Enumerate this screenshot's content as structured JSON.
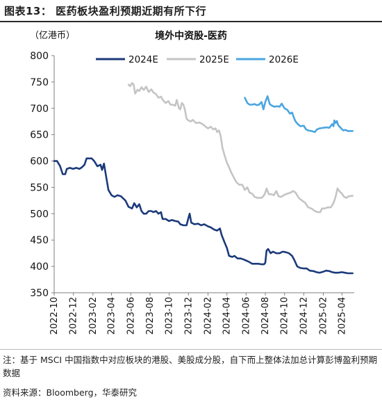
{
  "header": {
    "title": "图表13：  医药板块盈利预期近期有所下行"
  },
  "chart_data": {
    "type": "line",
    "title": "境外中资股-医药",
    "ylabel": "（亿港币）",
    "ylim": [
      350,
      800
    ],
    "yticks": [
      350,
      400,
      450,
      500,
      550,
      600,
      650,
      700,
      750,
      800
    ],
    "xlim": [
      "2022-10-01",
      "2025-05-10"
    ],
    "xticks": [
      "2022-10",
      "2022-12",
      "2023-02",
      "2023-04",
      "2023-06",
      "2023-08",
      "2023-10",
      "2023-12",
      "2024-02",
      "2024-04",
      "2024-06",
      "2024-08",
      "2024-10",
      "2024-12",
      "2025-02",
      "2025-04"
    ],
    "legend_position": "top",
    "grid": false,
    "series": [
      {
        "name": "2024E",
        "color": "#1b3a7a",
        "points": [
          [
            "2022-10-01",
            600
          ],
          [
            "2022-10-10",
            600
          ],
          [
            "2022-10-20",
            590
          ],
          [
            "2022-10-28",
            575
          ],
          [
            "2022-11-05",
            575
          ],
          [
            "2022-11-10",
            585
          ],
          [
            "2022-11-20",
            587
          ],
          [
            "2022-11-30",
            585
          ],
          [
            "2022-12-10",
            587
          ],
          [
            "2022-12-20",
            585
          ],
          [
            "2022-12-28",
            588
          ],
          [
            "2023-01-05",
            593
          ],
          [
            "2023-01-12",
            605
          ],
          [
            "2023-01-20",
            605
          ],
          [
            "2023-01-28",
            605
          ],
          [
            "2023-02-05",
            600
          ],
          [
            "2023-02-15",
            590
          ],
          [
            "2023-02-25",
            593
          ],
          [
            "2023-03-02",
            583
          ],
          [
            "2023-03-08",
            595
          ],
          [
            "2023-03-15",
            570
          ],
          [
            "2023-03-22",
            545
          ],
          [
            "2023-04-01",
            535
          ],
          [
            "2023-04-10",
            532
          ],
          [
            "2023-04-20",
            535
          ],
          [
            "2023-05-01",
            533
          ],
          [
            "2023-05-15",
            525
          ],
          [
            "2023-05-25",
            513
          ],
          [
            "2023-06-05",
            510
          ],
          [
            "2023-06-12",
            520
          ],
          [
            "2023-06-20",
            512
          ],
          [
            "2023-06-28",
            518
          ],
          [
            "2023-07-05",
            505
          ],
          [
            "2023-07-12",
            500
          ],
          [
            "2023-07-20",
            500
          ],
          [
            "2023-07-28",
            505
          ],
          [
            "2023-08-05",
            505
          ],
          [
            "2023-08-12",
            503
          ],
          [
            "2023-08-20",
            505
          ],
          [
            "2023-08-28",
            500
          ],
          [
            "2023-09-05",
            503
          ],
          [
            "2023-09-10",
            490
          ],
          [
            "2023-09-20",
            490
          ],
          [
            "2023-09-30",
            486
          ],
          [
            "2023-10-10",
            488
          ],
          [
            "2023-10-20",
            486
          ],
          [
            "2023-10-30",
            485
          ],
          [
            "2023-11-05",
            480
          ],
          [
            "2023-11-15",
            478
          ],
          [
            "2023-11-25",
            478
          ],
          [
            "2023-12-01",
            492
          ],
          [
            "2023-12-05",
            500
          ],
          [
            "2023-12-10",
            483
          ],
          [
            "2023-12-20",
            480
          ],
          [
            "2024-01-01",
            481
          ],
          [
            "2024-01-10",
            478
          ],
          [
            "2024-01-20",
            480
          ],
          [
            "2024-02-01",
            476
          ],
          [
            "2024-02-10",
            474
          ],
          [
            "2024-02-20",
            470
          ],
          [
            "2024-03-01",
            468
          ],
          [
            "2024-03-10",
            472
          ],
          [
            "2024-03-15",
            460
          ],
          [
            "2024-03-25",
            445
          ],
          [
            "2024-04-01",
            435
          ],
          [
            "2024-04-08",
            420
          ],
          [
            "2024-04-18",
            418
          ],
          [
            "2024-04-25",
            420
          ],
          [
            "2024-05-05",
            415
          ],
          [
            "2024-05-15",
            415
          ],
          [
            "2024-05-25",
            413
          ],
          [
            "2024-06-05",
            410
          ],
          [
            "2024-06-12",
            408
          ],
          [
            "2024-06-20",
            405
          ],
          [
            "2024-06-28",
            405
          ],
          [
            "2024-07-10",
            405
          ],
          [
            "2024-07-20",
            404
          ],
          [
            "2024-07-28",
            404
          ],
          [
            "2024-08-01",
            407
          ],
          [
            "2024-08-05",
            430
          ],
          [
            "2024-08-10",
            433
          ],
          [
            "2024-08-18",
            425
          ],
          [
            "2024-08-25",
            428
          ],
          [
            "2024-09-05",
            425
          ],
          [
            "2024-09-15",
            425
          ],
          [
            "2024-09-25",
            428
          ],
          [
            "2024-10-05",
            427
          ],
          [
            "2024-10-15",
            425
          ],
          [
            "2024-10-25",
            420
          ],
          [
            "2024-11-01",
            412
          ],
          [
            "2024-11-10",
            400
          ],
          [
            "2024-11-20",
            397
          ],
          [
            "2024-12-01",
            396
          ],
          [
            "2024-12-10",
            396
          ],
          [
            "2024-12-20",
            392
          ],
          [
            "2025-01-01",
            391
          ],
          [
            "2025-01-10",
            389
          ],
          [
            "2025-01-20",
            388
          ],
          [
            "2025-02-01",
            390
          ],
          [
            "2025-02-10",
            392
          ],
          [
            "2025-02-20",
            391
          ],
          [
            "2025-03-01",
            389
          ],
          [
            "2025-03-10",
            388
          ],
          [
            "2025-03-20",
            388
          ],
          [
            "2025-04-01",
            389
          ],
          [
            "2025-04-10",
            388
          ],
          [
            "2025-04-20",
            387
          ],
          [
            "2025-05-05",
            387
          ]
        ]
      },
      {
        "name": "2025E",
        "color": "#c4c4c4",
        "points": [
          [
            "2023-05-25",
            745
          ],
          [
            "2023-05-30",
            742
          ],
          [
            "2023-06-05",
            748
          ],
          [
            "2023-06-10",
            745
          ],
          [
            "2023-06-15",
            728
          ],
          [
            "2023-06-22",
            735
          ],
          [
            "2023-06-28",
            733
          ],
          [
            "2023-07-05",
            740
          ],
          [
            "2023-07-12",
            735
          ],
          [
            "2023-07-20",
            741
          ],
          [
            "2023-07-28",
            731
          ],
          [
            "2023-08-05",
            736
          ],
          [
            "2023-08-12",
            730
          ],
          [
            "2023-08-20",
            727
          ],
          [
            "2023-08-28",
            720
          ],
          [
            "2023-09-05",
            722
          ],
          [
            "2023-09-12",
            715
          ],
          [
            "2023-09-20",
            710
          ],
          [
            "2023-09-28",
            714
          ],
          [
            "2023-10-05",
            707
          ],
          [
            "2023-10-12",
            707
          ],
          [
            "2023-10-20",
            705
          ],
          [
            "2023-10-25",
            716
          ],
          [
            "2023-11-01",
            700
          ],
          [
            "2023-11-05",
            698
          ],
          [
            "2023-11-10",
            710
          ],
          [
            "2023-11-15",
            707
          ],
          [
            "2023-11-20",
            697
          ],
          [
            "2023-11-25",
            680
          ],
          [
            "2023-12-01",
            677
          ],
          [
            "2023-12-08",
            675
          ],
          [
            "2023-12-15",
            678
          ],
          [
            "2023-12-25",
            672
          ],
          [
            "2024-01-05",
            673
          ],
          [
            "2024-01-15",
            670
          ],
          [
            "2024-01-25",
            665
          ],
          [
            "2024-02-01",
            662
          ],
          [
            "2024-02-10",
            665
          ],
          [
            "2024-02-18",
            660
          ],
          [
            "2024-02-25",
            662
          ],
          [
            "2024-03-01",
            655
          ],
          [
            "2024-03-07",
            658
          ],
          [
            "2024-03-12",
            648
          ],
          [
            "2024-03-18",
            625
          ],
          [
            "2024-03-25",
            610
          ],
          [
            "2024-04-01",
            597
          ],
          [
            "2024-04-08",
            588
          ],
          [
            "2024-04-15",
            578
          ],
          [
            "2024-04-22",
            570
          ],
          [
            "2024-05-01",
            560
          ],
          [
            "2024-05-10",
            555
          ],
          [
            "2024-05-20",
            555
          ],
          [
            "2024-05-28",
            545
          ],
          [
            "2024-06-05",
            550
          ],
          [
            "2024-06-12",
            540
          ],
          [
            "2024-06-20",
            538
          ],
          [
            "2024-06-28",
            532
          ],
          [
            "2024-07-08",
            530
          ],
          [
            "2024-07-20",
            530
          ],
          [
            "2024-07-28",
            535
          ],
          [
            "2024-08-01",
            540
          ],
          [
            "2024-08-05",
            548
          ],
          [
            "2024-08-12",
            537
          ],
          [
            "2024-08-20",
            537
          ],
          [
            "2024-08-28",
            535
          ],
          [
            "2024-09-05",
            543
          ],
          [
            "2024-09-12",
            533
          ],
          [
            "2024-09-20",
            532
          ],
          [
            "2024-10-01",
            536
          ],
          [
            "2024-10-10",
            538
          ],
          [
            "2024-10-20",
            540
          ],
          [
            "2024-10-28",
            543
          ],
          [
            "2024-11-05",
            540
          ],
          [
            "2024-11-15",
            530
          ],
          [
            "2024-11-25",
            525
          ],
          [
            "2024-12-05",
            521
          ],
          [
            "2024-12-15",
            512
          ],
          [
            "2024-12-25",
            510
          ],
          [
            "2025-01-05",
            505
          ],
          [
            "2025-01-15",
            503
          ],
          [
            "2025-01-22",
            503
          ],
          [
            "2025-01-28",
            510
          ],
          [
            "2025-02-05",
            510
          ],
          [
            "2025-02-15",
            512
          ],
          [
            "2025-02-25",
            512
          ],
          [
            "2025-03-05",
            520
          ],
          [
            "2025-03-12",
            532
          ],
          [
            "2025-03-18",
            548
          ],
          [
            "2025-03-25",
            542
          ],
          [
            "2025-04-01",
            538
          ],
          [
            "2025-04-08",
            532
          ],
          [
            "2025-04-15",
            530
          ],
          [
            "2025-04-22",
            533
          ],
          [
            "2025-05-05",
            534
          ]
        ]
      },
      {
        "name": "2026E",
        "color": "#4aa5e0",
        "points": [
          [
            "2024-05-28",
            720
          ],
          [
            "2024-06-05",
            710
          ],
          [
            "2024-06-12",
            707
          ],
          [
            "2024-06-20",
            707
          ],
          [
            "2024-06-28",
            708
          ],
          [
            "2024-07-05",
            706
          ],
          [
            "2024-07-12",
            707
          ],
          [
            "2024-07-20",
            712
          ],
          [
            "2024-07-26",
            698
          ],
          [
            "2024-08-01",
            712
          ],
          [
            "2024-08-08",
            723
          ],
          [
            "2024-08-15",
            708
          ],
          [
            "2024-08-22",
            705
          ],
          [
            "2024-08-30",
            703
          ],
          [
            "2024-09-08",
            704
          ],
          [
            "2024-09-15",
            703
          ],
          [
            "2024-09-22",
            709
          ],
          [
            "2024-10-01",
            700
          ],
          [
            "2024-10-10",
            697
          ],
          [
            "2024-10-18",
            690
          ],
          [
            "2024-10-25",
            692
          ],
          [
            "2024-11-01",
            680
          ],
          [
            "2024-11-05",
            675
          ],
          [
            "2024-11-12",
            670
          ],
          [
            "2024-11-20",
            666
          ],
          [
            "2024-12-01",
            667
          ],
          [
            "2024-12-08",
            660
          ],
          [
            "2024-12-15",
            658
          ],
          [
            "2024-12-25",
            657
          ],
          [
            "2025-01-05",
            655
          ],
          [
            "2025-01-12",
            660
          ],
          [
            "2025-01-20",
            662
          ],
          [
            "2025-02-01",
            663
          ],
          [
            "2025-02-10",
            664
          ],
          [
            "2025-02-20",
            663
          ],
          [
            "2025-03-01",
            670
          ],
          [
            "2025-03-05",
            666
          ],
          [
            "2025-03-08",
            677
          ],
          [
            "2025-03-12",
            672
          ],
          [
            "2025-03-16",
            676
          ],
          [
            "2025-03-20",
            668
          ],
          [
            "2025-03-28",
            663
          ],
          [
            "2025-04-05",
            658
          ],
          [
            "2025-04-12",
            659
          ],
          [
            "2025-04-20",
            657
          ],
          [
            "2025-05-05",
            657
          ]
        ]
      }
    ]
  },
  "footer": {
    "note": "注：基于 MSCI 中国指数中对应板块的港股、美股成分股，自下而上整体法加总计算彭博盈利预期数据",
    "source": "资料来源：Bloomberg，华泰研究"
  }
}
